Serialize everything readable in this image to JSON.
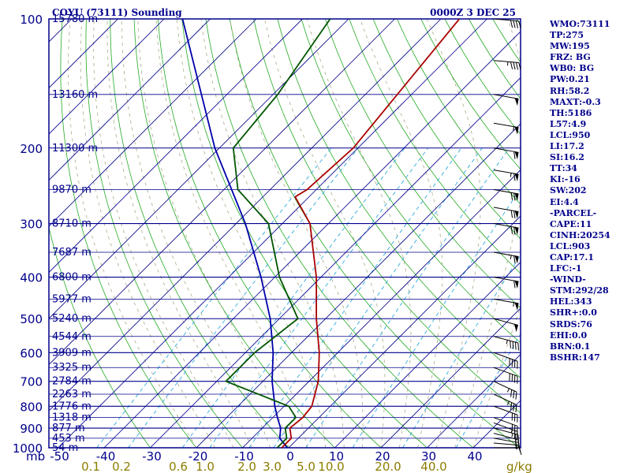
{
  "header": {
    "title": "COYU (73111) Sounding",
    "time": "0000Z  3 DEC 25"
  },
  "stats": [
    "WMO:73111",
    "TP:275",
    "MW:195",
    "FRZ: BG",
    "WB0: BG",
    "PW:0.21",
    "RH:58.2",
    "MAXT:-0.3",
    "TH:5186",
    "L57:4.9",
    "LCL:950",
    "LI:17.2",
    "SI:16.2",
    "TT:34",
    "KI:-16",
    "SW:202",
    "EI:4.4",
    "-PARCEL-",
    "CAPE:11",
    "CINH:20254",
    "LCL:903",
    "CAP:17.1",
    "LFC:-1",
    "-WIND-",
    "STM:292/28",
    "HEL:343",
    "SHR+:0.0",
    "SRDS:76",
    "EHI:0.0",
    "BRN:0.1",
    "BSHR:147"
  ],
  "colors": {
    "frame": "#00008b",
    "isobar": "#00008b",
    "isotherm": "#00008b",
    "dry_adiabat": "#22aa22",
    "moist_adiabat": "#aaaa88",
    "mixing_ratio": "#33aadd",
    "temperature": "#aa0000",
    "dewpoint": "#005500",
    "parcel": "#0000aa",
    "axis_text": "#00008b",
    "mixing_ratio_text": "#8b7d00"
  },
  "chart_data": {
    "type": "skew-t",
    "title": "COYU (73111) Sounding",
    "pressure_unit": "mb",
    "pressure_range": [
      1000,
      100
    ],
    "pressure_ticks": [
      100,
      200,
      300,
      400,
      500,
      600,
      700,
      800,
      900,
      1000
    ],
    "temperature_ticks": [
      -50,
      -40,
      -30,
      -20,
      -10,
      0,
      10,
      20,
      30,
      40
    ],
    "mixing_ratio_unit": "g/kg",
    "mixing_ratio_labels": [
      "0.1",
      "0.2",
      "0.6",
      "1.0",
      "2.0",
      "3.0",
      "5.0",
      "10.0",
      "20.0",
      "40.0"
    ],
    "mixing_ratio_values": [
      0.1,
      0.2,
      0.6,
      1.0,
      2.0,
      3.0,
      5.0,
      10.0,
      20.0,
      40.0
    ],
    "heights": [
      {
        "p": 100,
        "label": "15780 m"
      },
      {
        "p": 150,
        "label": "13160 m"
      },
      {
        "p": 200,
        "label": "11300 m"
      },
      {
        "p": 250,
        "label": "9870 m"
      },
      {
        "p": 300,
        "label": "8710 m"
      },
      {
        "p": 350,
        "label": "7687 m"
      },
      {
        "p": 400,
        "label": "6800 m"
      },
      {
        "p": 450,
        "label": "5977 m"
      },
      {
        "p": 500,
        "label": "5240 m"
      },
      {
        "p": 550,
        "label": "4544 m"
      },
      {
        "p": 600,
        "label": "3909 m"
      },
      {
        "p": 650,
        "label": "3325 m"
      },
      {
        "p": 700,
        "label": "2784 m"
      },
      {
        "p": 750,
        "label": "2263 m"
      },
      {
        "p": 800,
        "label": "1776 m"
      },
      {
        "p": 850,
        "label": "1318 m"
      },
      {
        "p": 900,
        "label": "877 m"
      },
      {
        "p": 950,
        "label": "453 m"
      },
      {
        "p": 1000,
        "label": "54 m"
      }
    ],
    "temperature": [
      {
        "p": 1000,
        "t": -1.5
      },
      {
        "p": 950,
        "t": -1.5
      },
      {
        "p": 900,
        "t": -4
      },
      {
        "p": 850,
        "t": -3.5
      },
      {
        "p": 800,
        "t": -4
      },
      {
        "p": 700,
        "t": -8
      },
      {
        "p": 600,
        "t": -14
      },
      {
        "p": 500,
        "t": -22
      },
      {
        "p": 400,
        "t": -31
      },
      {
        "p": 300,
        "t": -44
      },
      {
        "p": 260,
        "t": -53
      },
      {
        "p": 250,
        "t": -52
      },
      {
        "p": 200,
        "t": -51
      },
      {
        "p": 100,
        "t": -56
      }
    ],
    "dewpoint": [
      {
        "p": 1000,
        "t": -2.5
      },
      {
        "p": 950,
        "t": -2.5
      },
      {
        "p": 900,
        "t": -5
      },
      {
        "p": 850,
        "t": -5
      },
      {
        "p": 800,
        "t": -9
      },
      {
        "p": 700,
        "t": -28
      },
      {
        "p": 600,
        "t": -28
      },
      {
        "p": 500,
        "t": -26
      },
      {
        "p": 400,
        "t": -39
      },
      {
        "p": 300,
        "t": -53
      },
      {
        "p": 250,
        "t": -67
      },
      {
        "p": 200,
        "t": -77
      },
      {
        "p": 150,
        "t": -79
      },
      {
        "p": 100,
        "t": -84
      }
    ],
    "parcel": [
      {
        "p": 1000,
        "t": -0.3
      },
      {
        "p": 950,
        "t": -4
      },
      {
        "p": 900,
        "t": -6
      },
      {
        "p": 850,
        "t": -9
      },
      {
        "p": 800,
        "t": -12
      },
      {
        "p": 700,
        "t": -18
      },
      {
        "p": 600,
        "t": -24
      },
      {
        "p": 500,
        "t": -32
      },
      {
        "p": 400,
        "t": -43
      },
      {
        "p": 300,
        "t": -58
      },
      {
        "p": 200,
        "t": -81
      },
      {
        "p": 100,
        "t": -116
      }
    ],
    "wind_barbs": [
      {
        "p": 1000,
        "dir": 270,
        "spd": 10
      },
      {
        "p": 975,
        "dir": 275,
        "spd": 15
      },
      {
        "p": 950,
        "dir": 280,
        "spd": 20
      },
      {
        "p": 925,
        "dir": 285,
        "spd": 20
      },
      {
        "p": 900,
        "dir": 285,
        "spd": 25
      },
      {
        "p": 875,
        "dir": 290,
        "spd": 25
      },
      {
        "p": 850,
        "dir": 290,
        "spd": 30
      },
      {
        "p": 800,
        "dir": 290,
        "spd": 30
      },
      {
        "p": 750,
        "dir": 295,
        "spd": 35
      },
      {
        "p": 700,
        "dir": 295,
        "spd": 35
      },
      {
        "p": 650,
        "dir": 290,
        "spd": 40
      },
      {
        "p": 600,
        "dir": 290,
        "spd": 40
      },
      {
        "p": 550,
        "dir": 285,
        "spd": 45
      },
      {
        "p": 500,
        "dir": 285,
        "spd": 50
      },
      {
        "p": 450,
        "dir": 280,
        "spd": 55
      },
      {
        "p": 400,
        "dir": 280,
        "spd": 60
      },
      {
        "p": 350,
        "dir": 280,
        "spd": 65
      },
      {
        "p": 300,
        "dir": 280,
        "spd": 70
      },
      {
        "p": 275,
        "dir": 280,
        "spd": 70
      },
      {
        "p": 250,
        "dir": 280,
        "spd": 70
      },
      {
        "p": 225,
        "dir": 280,
        "spd": 65
      },
      {
        "p": 200,
        "dir": 280,
        "spd": 60
      },
      {
        "p": 175,
        "dir": 280,
        "spd": 55
      },
      {
        "p": 150,
        "dir": 280,
        "spd": 50
      },
      {
        "p": 125,
        "dir": 275,
        "spd": 45
      },
      {
        "p": 100,
        "dir": 275,
        "spd": 40
      }
    ]
  }
}
